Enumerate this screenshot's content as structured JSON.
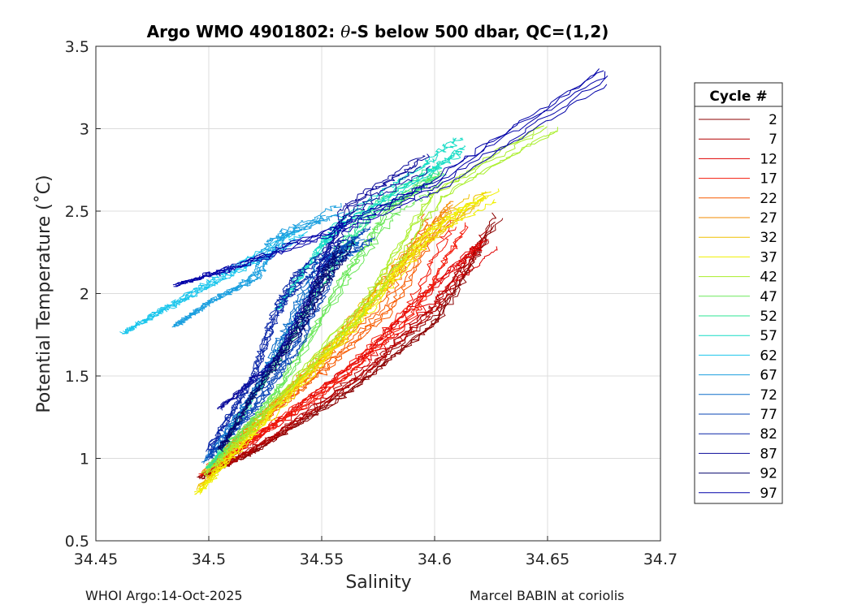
{
  "chart_data": {
    "type": "line",
    "title_prefix": "Argo WMO 4901802: ",
    "title_theta": "θ",
    "title_suffix": "-S below 500 dbar,  QC=(1,2)",
    "xlabel": "Salinity",
    "ylabel": "Potential Temperature (˚C)",
    "xlim": [
      34.45,
      34.7
    ],
    "ylim": [
      0.5,
      3.5
    ],
    "xticks": [
      34.45,
      34.5,
      34.55,
      34.6,
      34.65,
      34.7
    ],
    "xtick_labels": [
      "34.45",
      "34.5",
      "34.55",
      "34.6",
      "34.65",
      "34.7"
    ],
    "yticks": [
      0.5,
      1,
      1.5,
      2,
      2.5,
      3,
      3.5
    ],
    "ytick_labels": [
      "0.5",
      "1",
      "1.5",
      "2",
      "2.5",
      "3",
      "3.5"
    ],
    "grid": true,
    "legend": {
      "title": "Cycle #",
      "placement": "outside-right",
      "entries": [
        {
          "label": "2",
          "color": "#8b0000"
        },
        {
          "label": "7",
          "color": "#b30000"
        },
        {
          "label": "12",
          "color": "#e00000"
        },
        {
          "label": "17",
          "color": "#f41a0a"
        },
        {
          "label": "22",
          "color": "#f75a00"
        },
        {
          "label": "27",
          "color": "#f38b00"
        },
        {
          "label": "32",
          "color": "#efc000"
        },
        {
          "label": "37",
          "color": "#f0f000"
        },
        {
          "label": "42",
          "color": "#a9ee2a"
        },
        {
          "label": "47",
          "color": "#6be85a"
        },
        {
          "label": "52",
          "color": "#2ee493"
        },
        {
          "label": "57",
          "color": "#17dcc6"
        },
        {
          "label": "62",
          "color": "#1cc6ec"
        },
        {
          "label": "67",
          "color": "#1b9fdf"
        },
        {
          "label": "72",
          "color": "#0e6fc9"
        },
        {
          "label": "77",
          "color": "#0a46b6"
        },
        {
          "label": "82",
          "color": "#0a26a7"
        },
        {
          "label": "87",
          "color": "#0a0a9a"
        },
        {
          "label": "92",
          "color": "#06066e"
        },
        {
          "label": "97",
          "color": "#0000a8"
        }
      ]
    },
    "series": [
      {
        "name": "2",
        "points": [
          [
            34.496,
            0.88
          ],
          [
            34.52,
            1.05
          ],
          [
            34.56,
            1.4
          ],
          [
            34.6,
            1.85
          ],
          [
            34.625,
            2.45
          ]
        ]
      },
      {
        "name": "7",
        "points": [
          [
            34.5,
            0.9
          ],
          [
            34.53,
            1.15
          ],
          [
            34.57,
            1.55
          ],
          [
            34.6,
            1.95
          ],
          [
            34.62,
            2.35
          ]
        ]
      },
      {
        "name": "12",
        "points": [
          [
            34.498,
            0.9
          ],
          [
            34.53,
            1.2
          ],
          [
            34.57,
            1.6
          ],
          [
            34.6,
            2.0
          ],
          [
            34.625,
            2.28
          ]
        ]
      },
      {
        "name": "17",
        "points": [
          [
            34.497,
            0.9
          ],
          [
            34.52,
            1.12
          ],
          [
            34.56,
            1.5
          ],
          [
            34.59,
            1.9
          ],
          [
            34.61,
            2.4
          ]
        ]
      },
      {
        "name": "22",
        "points": [
          [
            34.5,
            0.95
          ],
          [
            34.52,
            1.2
          ],
          [
            34.55,
            1.55
          ],
          [
            34.58,
            1.95
          ],
          [
            34.6,
            2.5
          ]
        ]
      },
      {
        "name": "27",
        "points": [
          [
            34.498,
            0.92
          ],
          [
            34.52,
            1.22
          ],
          [
            34.55,
            1.6
          ],
          [
            34.58,
            2.1
          ],
          [
            34.61,
            2.55
          ]
        ]
      },
      {
        "name": "32",
        "points": [
          [
            34.496,
            0.82
          ],
          [
            34.52,
            1.2
          ],
          [
            34.56,
            1.75
          ],
          [
            34.585,
            2.2
          ],
          [
            34.62,
            2.6
          ]
        ]
      },
      {
        "name": "37",
        "points": [
          [
            34.495,
            0.79
          ],
          [
            34.52,
            1.15
          ],
          [
            34.57,
            1.9
          ],
          [
            34.6,
            2.4
          ],
          [
            34.625,
            2.6
          ]
        ]
      },
      {
        "name": "42",
        "points": [
          [
            34.498,
            0.9
          ],
          [
            34.52,
            1.2
          ],
          [
            34.57,
            1.95
          ],
          [
            34.6,
            2.6
          ],
          [
            34.65,
            3.02
          ]
        ]
      },
      {
        "name": "47",
        "points": [
          [
            34.5,
            0.95
          ],
          [
            34.53,
            1.4
          ],
          [
            34.56,
            2.1
          ],
          [
            34.58,
            2.5
          ],
          [
            34.6,
            2.7
          ]
        ]
      },
      {
        "name": "52",
        "points": [
          [
            34.5,
            0.95
          ],
          [
            34.53,
            1.6
          ],
          [
            34.555,
            2.2
          ],
          [
            34.57,
            2.5
          ],
          [
            34.6,
            2.75
          ]
        ]
      },
      {
        "name": "57",
        "points": [
          [
            34.53,
            1.9
          ],
          [
            34.55,
            2.3
          ],
          [
            34.56,
            2.45
          ],
          [
            34.595,
            2.75
          ],
          [
            34.61,
            2.9
          ]
        ]
      },
      {
        "name": "62",
        "points": [
          [
            34.462,
            1.76
          ],
          [
            34.48,
            1.9
          ],
          [
            34.5,
            2.05
          ],
          [
            34.52,
            2.2
          ],
          [
            34.54,
            2.35
          ]
        ]
      },
      {
        "name": "67",
        "points": [
          [
            34.485,
            1.8
          ],
          [
            34.5,
            1.95
          ],
          [
            34.52,
            2.1
          ],
          [
            34.53,
            2.35
          ],
          [
            34.555,
            2.5
          ]
        ]
      },
      {
        "name": "72",
        "points": [
          [
            34.498,
            0.98
          ],
          [
            34.52,
            1.4
          ],
          [
            34.535,
            1.8
          ],
          [
            34.55,
            2.2
          ],
          [
            34.565,
            2.3
          ]
        ]
      },
      {
        "name": "77",
        "points": [
          [
            34.5,
            1.0
          ],
          [
            34.52,
            1.3
          ],
          [
            34.54,
            1.7
          ],
          [
            34.555,
            2.2
          ],
          [
            34.57,
            2.35
          ]
        ]
      },
      {
        "name": "82",
        "points": [
          [
            34.5,
            1.05
          ],
          [
            34.52,
            1.5
          ],
          [
            34.53,
            1.9
          ],
          [
            34.54,
            2.1
          ],
          [
            34.56,
            2.3
          ]
        ]
      },
      {
        "name": "87",
        "points": [
          [
            34.505,
            1.3
          ],
          [
            34.53,
            1.6
          ],
          [
            34.545,
            2.0
          ],
          [
            34.56,
            2.5
          ],
          [
            34.595,
            2.8
          ]
        ]
      },
      {
        "name": "92",
        "points": [
          [
            34.505,
            1.05
          ],
          [
            34.52,
            1.4
          ],
          [
            34.54,
            1.8
          ],
          [
            34.55,
            2.1
          ],
          [
            34.56,
            2.3
          ]
        ]
      },
      {
        "name": "97",
        "points": [
          [
            34.485,
            2.05
          ],
          [
            34.51,
            2.15
          ],
          [
            34.56,
            2.4
          ],
          [
            34.6,
            2.65
          ],
          [
            34.677,
            3.32
          ]
        ]
      }
    ]
  },
  "footer": {
    "left": "WHOI Argo:14-Oct-2025",
    "right": "Marcel BABIN at coriolis"
  }
}
